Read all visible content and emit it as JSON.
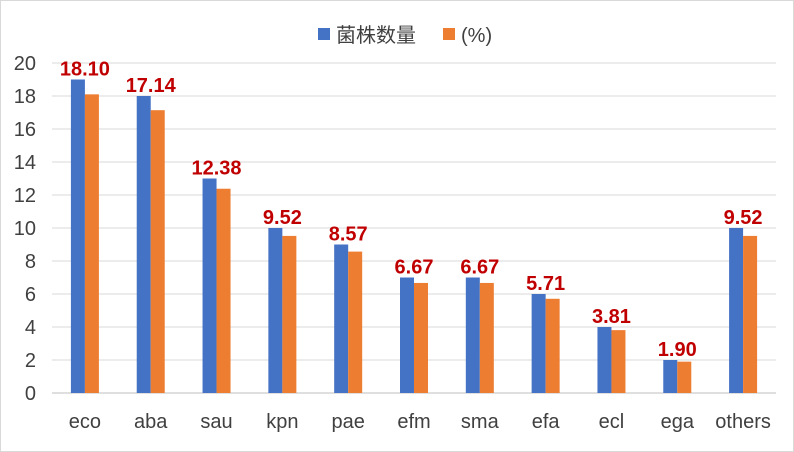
{
  "chart_data": {
    "type": "bar",
    "categories": [
      "eco",
      "aba",
      "sau",
      "kpn",
      "pae",
      "efm",
      "sma",
      "efa",
      "ecl",
      "ega",
      "others"
    ],
    "series": [
      {
        "name": "菌株数量",
        "values": [
          19,
          18,
          13,
          10,
          9,
          7,
          7,
          6,
          4,
          2,
          10
        ],
        "color": "#4472c4"
      },
      {
        "name": "(%)",
        "values": [
          18.1,
          17.14,
          12.38,
          9.52,
          8.57,
          6.67,
          6.67,
          5.71,
          3.81,
          1.9,
          9.52
        ],
        "color": "#ed7d31"
      }
    ],
    "data_labels": [
      "18.10",
      "17.14",
      "12.38",
      "9.52",
      "8.57",
      "6.67",
      "6.67",
      "5.71",
      "3.81",
      "1.90",
      "9.52"
    ],
    "data_label_color": "#c00000",
    "yticks": [
      "0",
      "2",
      "4",
      "6",
      "8",
      "10",
      "12",
      "14",
      "16",
      "18",
      "20"
    ],
    "ylim": [
      0,
      20
    ],
    "grid": true,
    "legend": "top"
  }
}
